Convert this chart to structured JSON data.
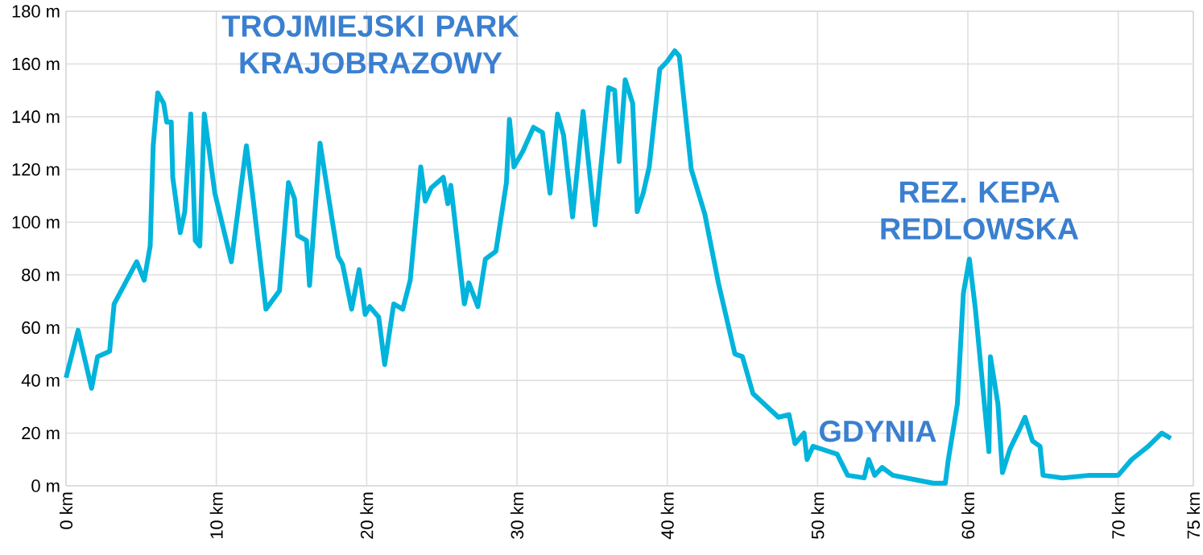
{
  "chart_data": {
    "type": "line",
    "x": [
      0,
      0.8,
      1.7,
      2.1,
      2.9,
      3.2,
      4.7,
      5.2,
      5.6,
      5.8,
      6.1,
      6.5,
      6.7,
      7.0,
      7.1,
      7.6,
      7.9,
      8.3,
      8.6,
      8.9,
      9.2,
      9.9,
      11.0,
      12.0,
      12.4,
      13.3,
      14.2,
      14.8,
      15.2,
      15.4,
      16.0,
      16.2,
      16.9,
      17.7,
      18.1,
      18.4,
      19.0,
      19.5,
      19.9,
      20.2,
      20.8,
      21.2,
      21.8,
      22.4,
      22.9,
      23.6,
      23.9,
      24.3,
      25.1,
      25.4,
      25.6,
      26.5,
      26.8,
      27.4,
      27.9,
      28.6,
      29.3,
      29.5,
      29.8,
      30.4,
      31.1,
      31.7,
      32.2,
      32.7,
      33.1,
      33.7,
      34.4,
      35.2,
      36.1,
      36.5,
      36.8,
      37.2,
      37.7,
      38.0,
      38.4,
      38.8,
      39.5,
      40.0,
      40.5,
      40.8,
      41.6,
      42.5,
      43.4,
      44.5,
      45.0,
      45.7,
      47.4,
      48.1,
      48.5,
      49.1,
      49.3,
      49.7,
      51.3,
      52.0,
      53.1,
      53.4,
      53.8,
      54.3,
      55.0,
      56.8,
      57.7,
      58.5,
      58.7,
      59.3,
      59.7,
      60.1,
      60.5,
      60.7,
      61.2,
      61.4,
      61.5,
      62.0,
      62.3,
      62.8,
      63.4,
      63.8,
      64.3,
      64.8,
      65.0,
      66.3,
      68.1,
      70.0,
      70.9,
      72.0,
      72.9,
      73.5
    ],
    "series": [
      {
        "color": "#00b4dc",
        "values": [
          41,
          59,
          37,
          49,
          51,
          69,
          85,
          78,
          91,
          129,
          149,
          145,
          138,
          138,
          117,
          96,
          104,
          141,
          93,
          91,
          141,
          111,
          85,
          129,
          111,
          67,
          74,
          115,
          109,
          95,
          93,
          76,
          130,
          101,
          87,
          84,
          67,
          82,
          65,
          68,
          64,
          46,
          69,
          67,
          78,
          121,
          108,
          113,
          117,
          107,
          114,
          69,
          77,
          68,
          86,
          89,
          115,
          139,
          121,
          127,
          136,
          134,
          111,
          141,
          133,
          102,
          142,
          99,
          151,
          150,
          123,
          154,
          145,
          104,
          111,
          121,
          158,
          161,
          165,
          163,
          120,
          103,
          77,
          50,
          49,
          35,
          26,
          27,
          16,
          20,
          10,
          15,
          12,
          4,
          3,
          10,
          4,
          7,
          4,
          2,
          1,
          1,
          10,
          31,
          73,
          86,
          67,
          55,
          25,
          13,
          49,
          31,
          5,
          14,
          21,
          26,
          17,
          15,
          4,
          3,
          4,
          4,
          10,
          15,
          20,
          18
        ]
      }
    ],
    "xlim": [
      0,
      75
    ],
    "ylim": [
      0,
      180
    ],
    "xticks": [
      {
        "value": 0,
        "label": "0 km"
      },
      {
        "value": 10,
        "label": "10 km"
      },
      {
        "value": 20,
        "label": "20 km"
      },
      {
        "value": 30,
        "label": "30 km"
      },
      {
        "value": 40,
        "label": "40 km"
      },
      {
        "value": 50,
        "label": "50 km"
      },
      {
        "value": 60,
        "label": "60 km"
      },
      {
        "value": 70,
        "label": "70 km"
      },
      {
        "value": 75,
        "label": "75 km"
      }
    ],
    "yticks": [
      {
        "value": 0,
        "label": "0 m"
      },
      {
        "value": 20,
        "label": "20 m"
      },
      {
        "value": 40,
        "label": "40 m"
      },
      {
        "value": 60,
        "label": "60 m"
      },
      {
        "value": 80,
        "label": "80 m"
      },
      {
        "value": 100,
        "label": "100 m"
      },
      {
        "value": 120,
        "label": "120 m"
      },
      {
        "value": 140,
        "label": "140 m"
      },
      {
        "value": 160,
        "label": "160 m"
      },
      {
        "value": 180,
        "label": "180 m"
      }
    ],
    "grid": true,
    "annotations": [
      "TROJMIEJSKI PARK KRAJOBRAZOWY",
      "REZ. KEPA REDLOWSKA",
      "GDYNIA"
    ]
  }
}
